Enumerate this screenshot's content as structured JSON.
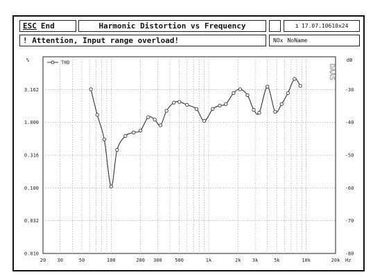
{
  "toolbar": {
    "esc_key": "ESC",
    "esc_label": "End",
    "title": "Harmonic Distortion vs Frequency",
    "datetime_icon": "info-icon",
    "datetime": "17.07.10610x24"
  },
  "status": {
    "message": "! Attention, Input range overload!",
    "file_icon": "file-icon",
    "file_prefix": "NOx",
    "file_name": "NoName"
  },
  "chart_data": {
    "type": "line",
    "title": "",
    "watermark": "DAAS",
    "xlabel": "Hz",
    "ylabel_left": "%",
    "ylabel_right": "dB",
    "x_scale": "log",
    "y_scale": "log",
    "xlim": [
      20,
      20000
    ],
    "ylim": [
      0.01,
      10
    ],
    "y_right_lim": [
      -80,
      -20
    ],
    "grid": true,
    "legend_position": "top-left",
    "x_ticks": [
      "20",
      "30",
      "50",
      "100",
      "200",
      "300",
      "500",
      "1k",
      "2k",
      "3k",
      "5k",
      "10k",
      "20k"
    ],
    "x_tick_values": [
      20,
      30,
      50,
      100,
      200,
      300,
      500,
      1000,
      2000,
      3000,
      5000,
      10000,
      20000
    ],
    "y_ticks_left": [
      "0.010",
      "0.032",
      "0.100",
      "0.316",
      "1.000",
      "3.162"
    ],
    "y_tick_values_left": [
      0.01,
      0.0316,
      0.1,
      0.316,
      1.0,
      3.162
    ],
    "y_ticks_right": [
      "-30",
      "-40",
      "-50",
      "-60",
      "-70",
      "-80"
    ],
    "y_tick_values_right": [
      -30,
      -40,
      -50,
      -60,
      -70,
      -80
    ],
    "series": [
      {
        "name": "THD",
        "color": "#333333",
        "x": [
          62,
          72,
          85,
          100,
          115,
          140,
          170,
          200,
          240,
          280,
          320,
          370,
          440,
          500,
          600,
          750,
          900,
          1100,
          1300,
          1500,
          1800,
          2100,
          2500,
          2900,
          3300,
          4000,
          4800,
          5600,
          6500,
          7600,
          8700
        ],
        "y": [
          3.2,
          1.3,
          0.55,
          0.105,
          0.38,
          0.62,
          0.7,
          0.75,
          1.2,
          1.1,
          0.9,
          1.5,
          2.0,
          2.05,
          1.85,
          1.6,
          1.05,
          1.6,
          1.8,
          1.9,
          2.8,
          3.2,
          2.6,
          1.55,
          1.4,
          3.5,
          1.45,
          1.9,
          2.8,
          4.6,
          3.6
        ]
      }
    ]
  }
}
